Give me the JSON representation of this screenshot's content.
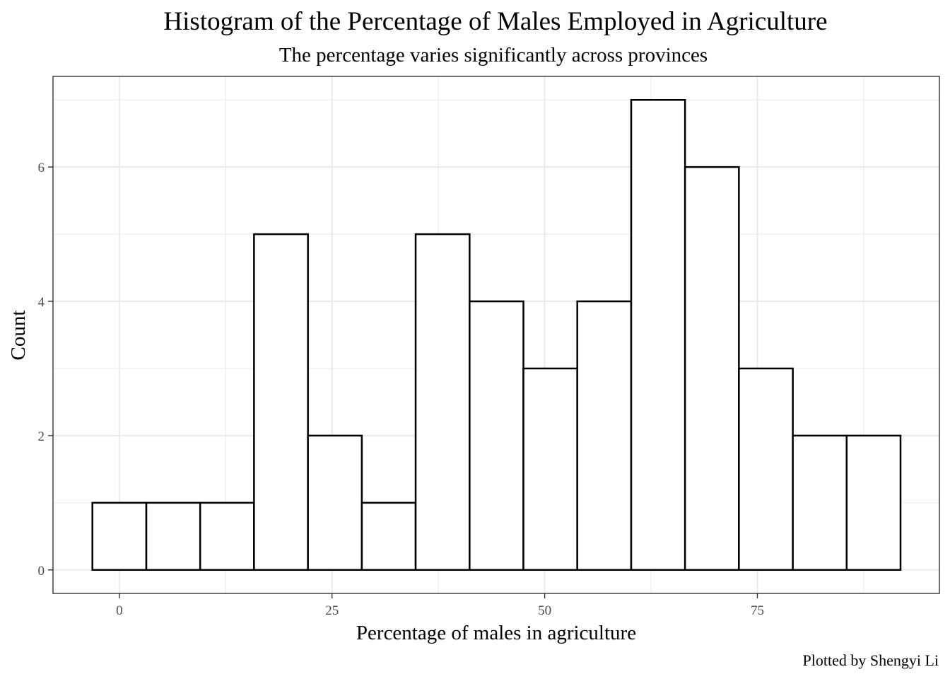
{
  "chart_data": {
    "type": "bar",
    "title": "Histogram of the Percentage of Males Employed in Agriculture",
    "subtitle": "The percentage varies significantly across provinces",
    "xlabel": "Percentage of males in agriculture",
    "ylabel": "Count",
    "caption": "Plotted by Shengyi Li",
    "bin_width": 6.33,
    "bins": [
      {
        "x0": -3.17,
        "x1": 3.17,
        "count": 1
      },
      {
        "x0": 3.17,
        "x1": 9.5,
        "count": 1
      },
      {
        "x0": 9.5,
        "x1": 15.83,
        "count": 1
      },
      {
        "x0": 15.83,
        "x1": 22.17,
        "count": 5
      },
      {
        "x0": 22.17,
        "x1": 28.5,
        "count": 2
      },
      {
        "x0": 28.5,
        "x1": 34.83,
        "count": 1
      },
      {
        "x0": 34.83,
        "x1": 41.17,
        "count": 5
      },
      {
        "x0": 41.17,
        "x1": 47.5,
        "count": 4
      },
      {
        "x0": 47.5,
        "x1": 53.83,
        "count": 3
      },
      {
        "x0": 53.83,
        "x1": 60.17,
        "count": 4
      },
      {
        "x0": 60.17,
        "x1": 66.5,
        "count": 7
      },
      {
        "x0": 66.5,
        "x1": 72.83,
        "count": 6
      },
      {
        "x0": 72.83,
        "x1": 79.17,
        "count": 3
      },
      {
        "x0": 79.17,
        "x1": 85.5,
        "count": 2
      },
      {
        "x0": 85.5,
        "x1": 91.83,
        "count": 2
      }
    ],
    "xlim": [
      -7.8,
      96.4
    ],
    "ylim": [
      -0.35,
      7.35
    ],
    "x_ticks": [
      0,
      25,
      50,
      75
    ],
    "x_tick_labels": [
      "0",
      "25",
      "50",
      "75"
    ],
    "y_ticks": [
      0,
      2,
      4,
      6
    ],
    "y_tick_labels": [
      "0",
      "2",
      "4",
      "6"
    ],
    "x_minor": [
      12.5,
      37.5,
      62.5,
      87.5
    ],
    "y_minor": [
      1,
      3,
      5,
      7
    ],
    "grid": true,
    "legend": "none",
    "colors": {
      "bar_fill": "#ffffff",
      "bar_outline": "#000000",
      "grid": "#ebebeb",
      "panel_border": "#333333"
    }
  }
}
